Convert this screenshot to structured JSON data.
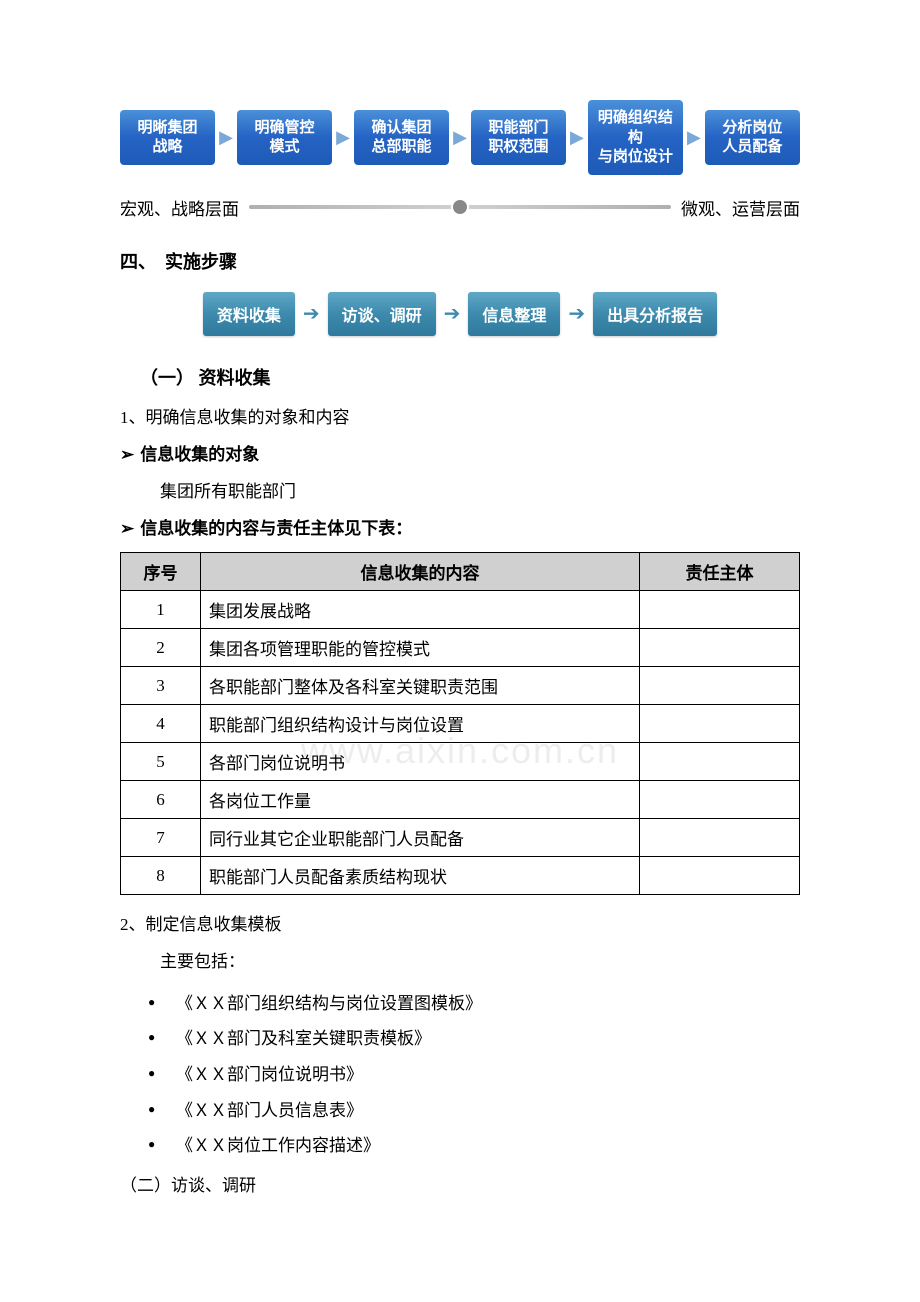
{
  "flow1": {
    "boxes": [
      {
        "l1": "明晰集团",
        "l2": "战略"
      },
      {
        "l1": "明确管控",
        "l2": "模式"
      },
      {
        "l1": "确认集团",
        "l2": "总部职能"
      },
      {
        "l1": "职能部门",
        "l2": "职权范围"
      },
      {
        "l1": "明确组织结构",
        "l2": "与岗位设计"
      },
      {
        "l1": "分析岗位",
        "l2": "人员配备"
      }
    ],
    "box_bg_gradient": [
      "#4a90d9",
      "#2563c4",
      "#1e5bb8"
    ],
    "box_font_color": "#ffffff",
    "arrow_color": "#7aa8d8"
  },
  "spectrum": {
    "left": "宏观、战略层面",
    "right": "微观、运营层面",
    "line_color": "#b0b0b0",
    "dot_color": "#888888"
  },
  "sec4_title": "四、　实施步骤",
  "flow2": {
    "boxes": [
      "资料收集",
      "访谈、调研",
      "信息整理",
      "出具分析报告"
    ],
    "box_bg_gradient": [
      "#5fa8c7",
      "#3d8aad",
      "#2f7a9d"
    ],
    "box_font_color": "#ffffff",
    "arrow_color": "#3d8aad"
  },
  "sub1_title": "（一） 资料收集",
  "point1_title": "1、明确信息收集的对象和内容",
  "arrow1_label": "信息收集的对象",
  "arrow1_body": "集团所有职能部门",
  "arrow2_label": "信息收集的内容与责任主体见下表：",
  "table": {
    "columns": [
      "序号",
      "信息收集的内容",
      "责任主体"
    ],
    "header_bg": "#d0d0d0",
    "border_color": "#000000",
    "rows": [
      [
        "1",
        "集团发展战略",
        ""
      ],
      [
        "2",
        "集团各项管理职能的管控模式",
        ""
      ],
      [
        "3",
        "各职能部门整体及各科室关键职责范围",
        ""
      ],
      [
        "4",
        "职能部门组织结构设计与岗位设置",
        ""
      ],
      [
        "5",
        "各部门岗位说明书",
        ""
      ],
      [
        "6",
        "各岗位工作量",
        ""
      ],
      [
        "7",
        "同行业其它企业职能部门人员配备",
        ""
      ],
      [
        "8",
        "职能部门人员配备素质结构现状",
        ""
      ]
    ]
  },
  "point2_title": "2、制定信息收集模板",
  "point2_lead": "主要包括：",
  "bullets": [
    "《ＸＸ部门组织结构与岗位设置图模板》",
    "《ＸＸ部门及科室关键职责模板》",
    "《ＸＸ部门岗位说明书》",
    "《ＸＸ部门人员信息表》",
    "《ＸＸ岗位工作内容描述》"
  ],
  "sub2_title": "（二）访谈、调研",
  "watermark": "www.aixin.com.cn"
}
